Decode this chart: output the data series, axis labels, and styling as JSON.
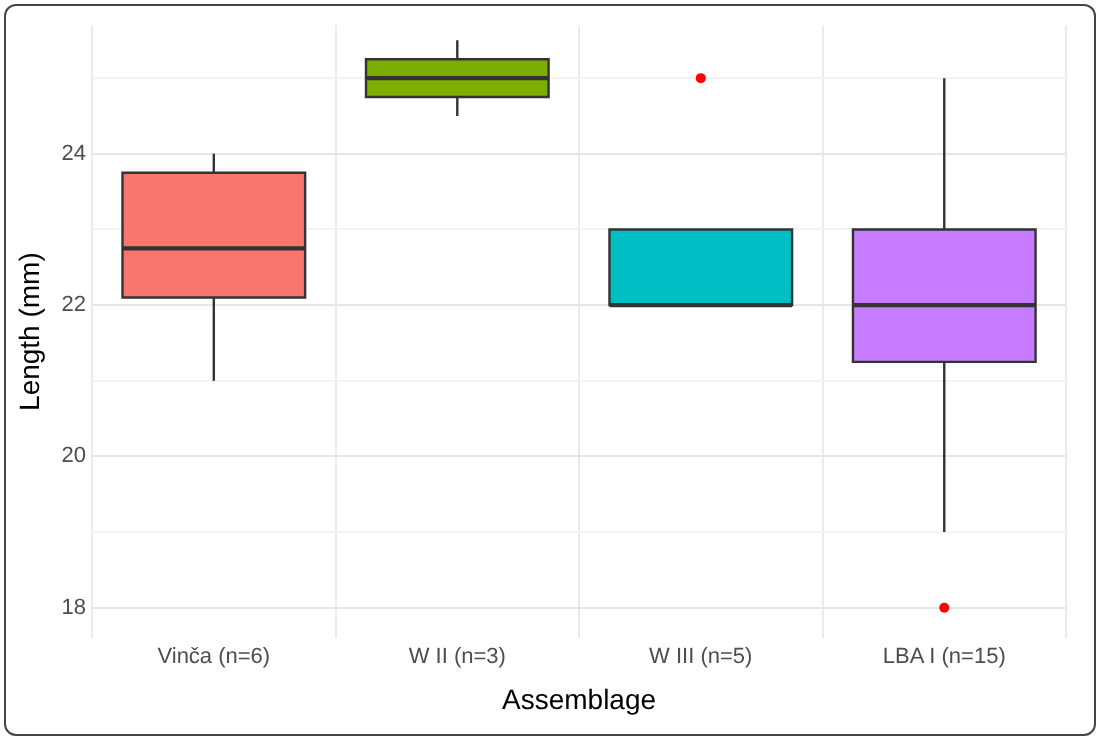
{
  "chart_data": {
    "type": "box",
    "xlabel": "Assemblage",
    "ylabel": "Length (mm)",
    "categories": [
      "Vinča (n=6)",
      "W II (n=3)",
      "W III (n=5)",
      "LBA I (n=15)"
    ],
    "colors": [
      "#f8766d",
      "#7cae00",
      "#00bfc4",
      "#c77cff"
    ],
    "boxes": [
      {
        "low": 21,
        "q1": 22.1,
        "median": 22.75,
        "q3": 23.75,
        "high": 24
      },
      {
        "low": 24.5,
        "q1": 24.75,
        "median": 25,
        "q3": 25.25,
        "high": 25.5
      },
      {
        "low": 22,
        "q1": 22,
        "median": 22,
        "q3": 23,
        "high": 23,
        "outliers": [
          25
        ]
      },
      {
        "low": 19,
        "q1": 21.25,
        "median": 22,
        "q3": 23,
        "high": 25,
        "outliers": [
          18
        ]
      }
    ],
    "ylim": [
      17.6,
      25.7
    ],
    "yticks": [
      18,
      {
        "value": 19,
        "label": null
      },
      20,
      {
        "value": 21,
        "label": null
      },
      22,
      {
        "value": 23,
        "label": null
      },
      24,
      {
        "value": 25,
        "label": null
      }
    ],
    "grid": true,
    "legend": false
  }
}
